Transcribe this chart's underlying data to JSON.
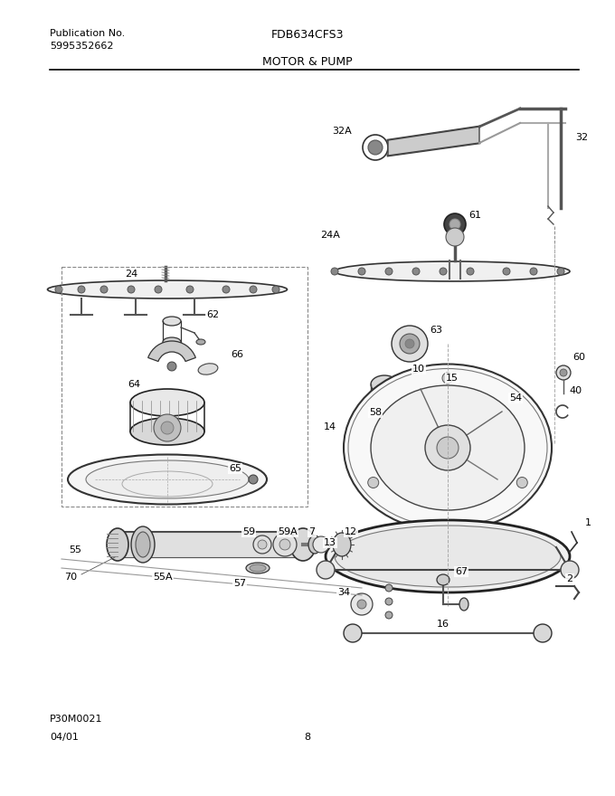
{
  "title": "FDB634CFS3",
  "subtitle": "MOTOR & PUMP",
  "pub_no": "Publication No.",
  "pub_num": "5995352662",
  "image_code": "P30M0021",
  "date": "04/01",
  "page": "8",
  "bg_color": "#ffffff",
  "line_color": "#000000"
}
